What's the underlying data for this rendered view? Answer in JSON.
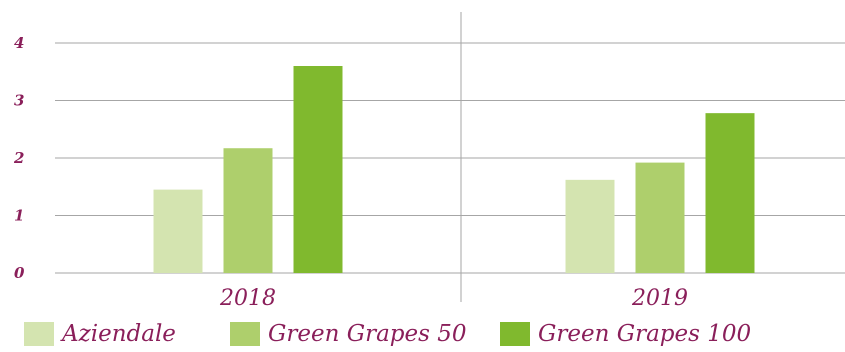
{
  "chart_data": {
    "type": "bar",
    "categories": [
      "2018",
      "2019"
    ],
    "series": [
      {
        "name": "Aziendale",
        "values": [
          1.45,
          1.62
        ],
        "color": "#d4e4b0"
      },
      {
        "name": "Green Grapes 50",
        "values": [
          2.17,
          1.92
        ],
        "color": "#aecf6c"
      },
      {
        "name": "Green Grapes 100",
        "values": [
          3.6,
          2.78
        ],
        "color": "#80b92e"
      }
    ],
    "ylim": [
      0,
      4
    ],
    "yticks": [
      "0",
      "1",
      "2",
      "3",
      "4"
    ],
    "grid": true,
    "legend_position": "bottom"
  }
}
